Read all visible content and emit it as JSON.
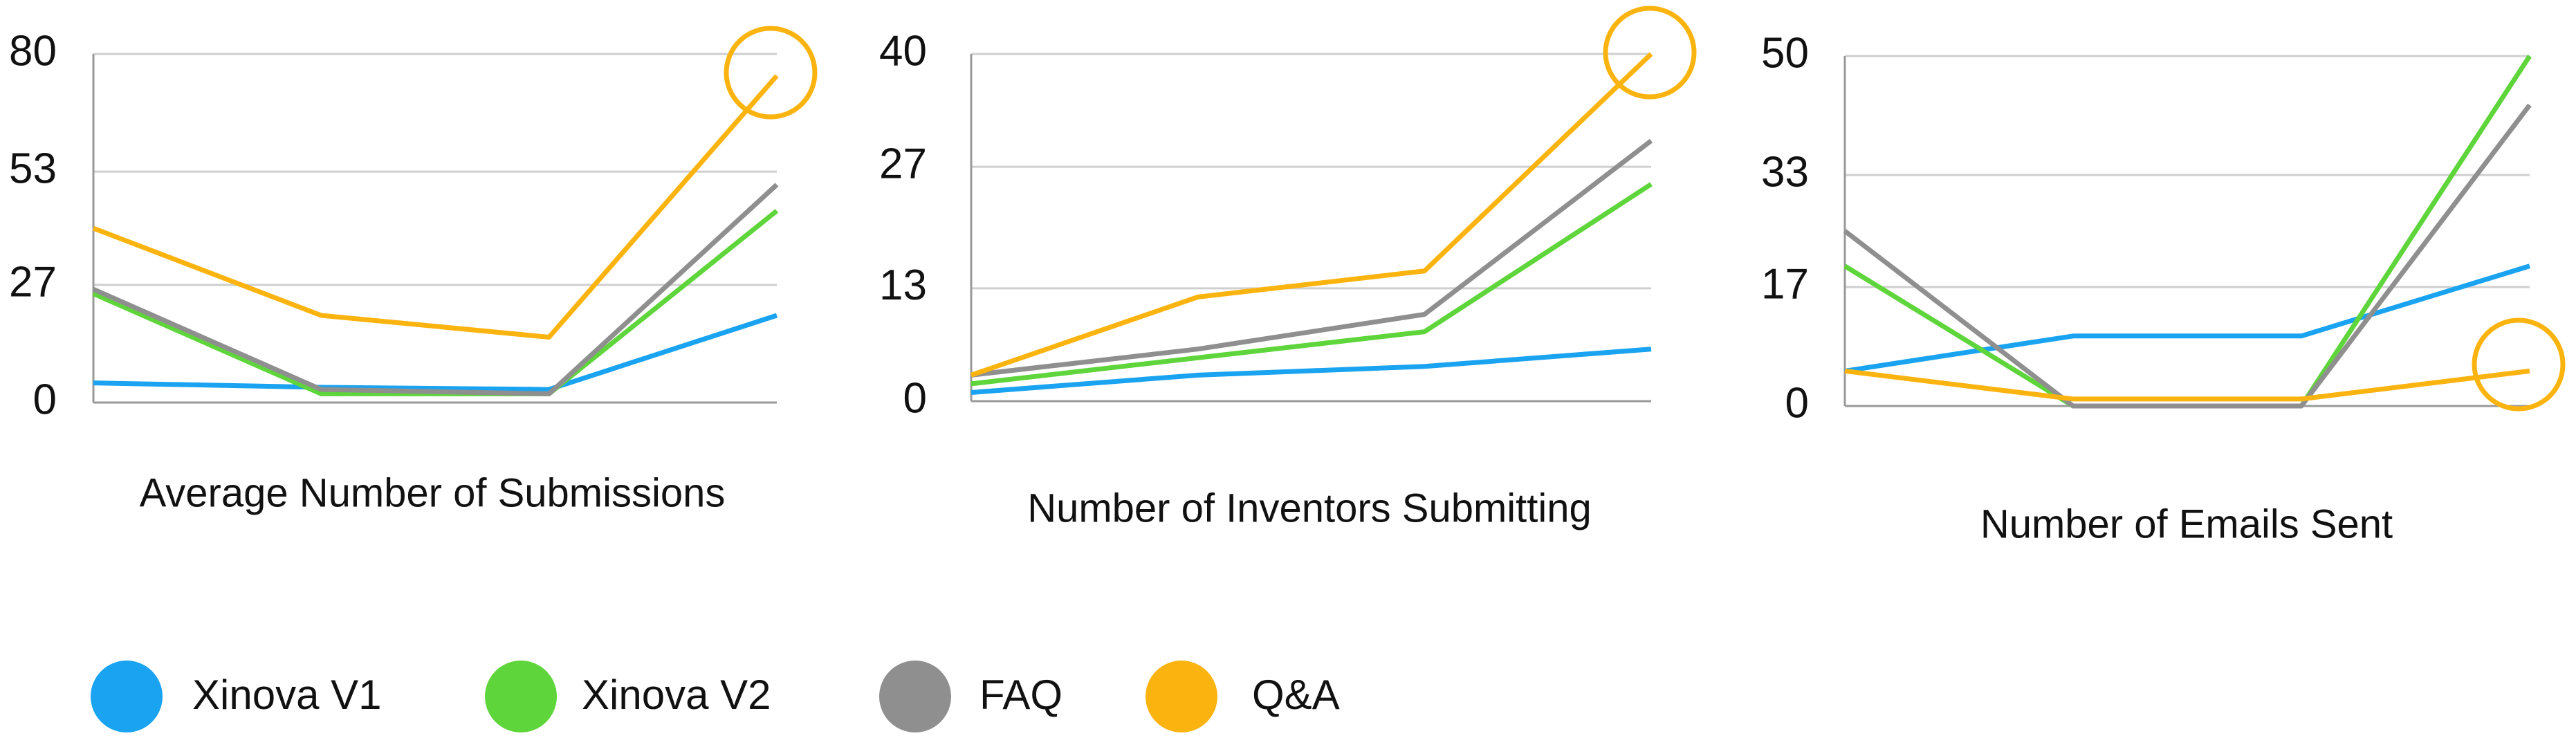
{
  "chart_data": [
    {
      "type": "line",
      "xlabel": "Average Number of Submissions",
      "categories": [
        null,
        null,
        null,
        null
      ],
      "ylim": [
        0,
        80
      ],
      "yticks": [
        0,
        27,
        53,
        80
      ],
      "grid": true,
      "series": [
        {
          "name": "Xinova V1",
          "color": "#1aa3f0",
          "values": [
            4.5,
            3.5,
            3,
            20
          ]
        },
        {
          "name": "Xinova V2",
          "color": "#5ed53a",
          "values": [
            25,
            2,
            2,
            44
          ]
        },
        {
          "name": "FAQ",
          "color": "#8f8f8f",
          "values": [
            26,
            3,
            2,
            50
          ]
        },
        {
          "name": "Q&A",
          "color": "#fbb40f",
          "values": [
            40,
            20,
            15,
            75
          ]
        }
      ]
    },
    {
      "type": "line",
      "xlabel": "Number of Inventors Submitting",
      "categories": [
        null,
        null,
        null,
        null
      ],
      "ylim": [
        0,
        40
      ],
      "yticks": [
        0,
        13,
        27,
        40
      ],
      "grid": true,
      "series": [
        {
          "name": "Xinova V1",
          "color": "#1aa3f0",
          "values": [
            1,
            3,
            4,
            6
          ]
        },
        {
          "name": "Xinova V2",
          "color": "#5ed53a",
          "values": [
            2,
            5,
            8,
            25
          ]
        },
        {
          "name": "FAQ",
          "color": "#8f8f8f",
          "values": [
            3,
            6,
            10,
            30
          ]
        },
        {
          "name": "Q&A",
          "color": "#fbb40f",
          "values": [
            3,
            12,
            15,
            40
          ]
        }
      ]
    },
    {
      "type": "line",
      "xlabel": "Number of Emails Sent",
      "categories": [
        null,
        null,
        null,
        null
      ],
      "ylim": [
        0,
        50
      ],
      "yticks": [
        0,
        17,
        33,
        50
      ],
      "grid": true,
      "series": [
        {
          "name": "Xinova V1",
          "color": "#1aa3f0",
          "values": [
            5,
            10,
            10,
            20
          ]
        },
        {
          "name": "Xinova V2",
          "color": "#5ed53a",
          "values": [
            20,
            0,
            0,
            50
          ]
        },
        {
          "name": "FAQ",
          "color": "#8f8f8f",
          "values": [
            25,
            0,
            0,
            43
          ]
        },
        {
          "name": "Q&A",
          "color": "#fbb40f",
          "values": [
            5,
            1,
            1,
            5
          ]
        }
      ]
    }
  ]
}
